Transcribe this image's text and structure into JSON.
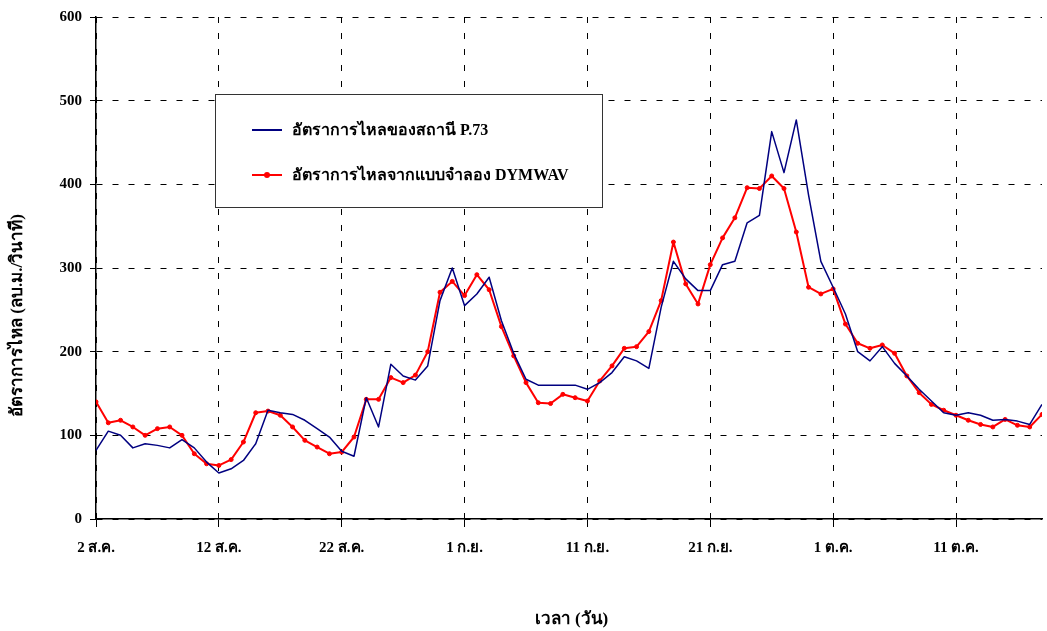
{
  "chart_data": {
    "type": "line",
    "xlabel": "เวลา (วัน)",
    "ylabel": "อัตราการไหล (ลบ.ม./วินาที)",
    "x": [
      "--08-02",
      "--08-03",
      "--08-04",
      "--08-05",
      "--08-06",
      "--08-07",
      "--08-08",
      "--08-09",
      "--08-10",
      "--08-11",
      "--08-12",
      "--08-13",
      "--08-14",
      "--08-15",
      "--08-16",
      "--08-17",
      "--08-18",
      "--08-19",
      "--08-20",
      "--08-21",
      "--08-22",
      "--08-23",
      "--08-24",
      "--08-25",
      "--08-26",
      "--08-27",
      "--08-28",
      "--08-29",
      "--08-30",
      "--08-31",
      "--09-01",
      "--09-02",
      "--09-03",
      "--09-04",
      "--09-05",
      "--09-06",
      "--09-07",
      "--09-08",
      "--09-09",
      "--09-10",
      "--09-11",
      "--09-12",
      "--09-13",
      "--09-14",
      "--09-15",
      "--09-16",
      "--09-17",
      "--09-18",
      "--09-19",
      "--09-20",
      "--09-21",
      "--09-22",
      "--09-23",
      "--09-24",
      "--09-25",
      "--09-26",
      "--09-27",
      "--09-28",
      "--09-29",
      "--09-30",
      "--10-01",
      "--10-02",
      "--10-03",
      "--10-04",
      "--10-05",
      "--10-06",
      "--10-07",
      "--10-08",
      "--10-09",
      "--10-10",
      "--10-11",
      "--10-12",
      "--10-13",
      "--10-14",
      "--10-15",
      "--10-16",
      "--10-17",
      "--10-18"
    ],
    "series": [
      {
        "name": "อัตราการไหลของสถานี P.73",
        "color": "#000080",
        "marker": "none",
        "values": [
          82,
          105,
          100,
          85,
          90,
          88,
          85,
          95,
          85,
          68,
          55,
          60,
          70,
          90,
          130,
          127,
          125,
          118,
          108,
          98,
          81,
          75,
          145,
          110,
          185,
          171,
          166,
          183,
          261,
          300,
          255,
          269,
          289,
          237,
          198,
          167,
          160,
          160,
          160,
          160,
          155,
          163,
          175,
          194,
          189,
          180,
          253,
          308,
          287,
          273,
          273,
          304,
          308,
          354,
          363,
          463,
          414,
          477,
          387,
          308,
          277,
          245,
          200,
          189,
          206,
          186,
          171,
          155,
          141,
          127,
          124,
          127,
          124,
          118,
          119,
          117,
          113,
          137
        ]
      },
      {
        "name": "อัตราการไหลจากแบบจำลอง DYMWAV",
        "color": "#ff0000",
        "marker": "circle",
        "values": [
          140,
          115,
          118,
          110,
          100,
          108,
          110,
          100,
          78,
          66,
          64,
          71,
          92,
          127,
          129,
          124,
          110,
          94,
          86,
          78,
          80,
          98,
          143,
          143,
          169,
          163,
          172,
          200,
          271,
          284,
          267,
          292,
          274,
          230,
          195,
          163,
          139,
          138,
          149,
          145,
          141,
          165,
          183,
          204,
          206,
          224,
          261,
          331,
          281,
          257,
          304,
          336,
          360,
          396,
          395,
          410,
          395,
          343,
          277,
          269,
          275,
          233,
          210,
          204,
          208,
          198,
          171,
          151,
          137,
          130,
          124,
          118,
          113,
          110,
          119,
          112,
          110,
          125
        ]
      }
    ],
    "xlim": [
      "--08-02",
      "--10-18"
    ],
    "xticks": [
      {
        "value": "--08-02",
        "label": "2 ส.ค."
      },
      {
        "value": "--08-12",
        "label": "12 ส.ค."
      },
      {
        "value": "--08-22",
        "label": "22 ส.ค."
      },
      {
        "value": "--09-01",
        "label": "1 ก.ย."
      },
      {
        "value": "--09-11",
        "label": "11 ก.ย."
      },
      {
        "value": "--09-21",
        "label": "21 ก.ย."
      },
      {
        "value": "--10-01",
        "label": "1 ต.ค."
      },
      {
        "value": "--10-11",
        "label": "11 ต.ค."
      }
    ],
    "ylim": [
      0,
      600
    ],
    "yticks": [
      0,
      100,
      200,
      300,
      400,
      500,
      600
    ],
    "grid": true,
    "legend": "top left",
    "line_style": "solid"
  }
}
